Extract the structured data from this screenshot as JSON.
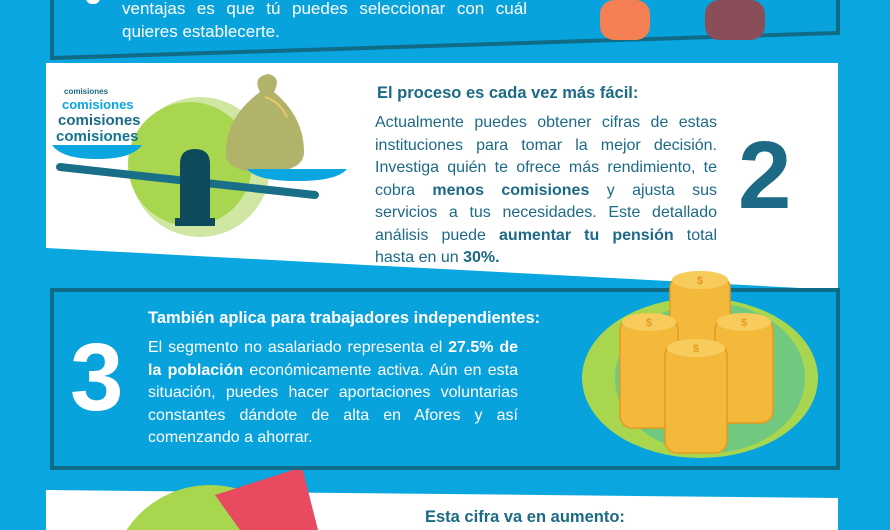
{
  "section1": {
    "body": "ventajas es que tú puedes seleccionar con cuál quieres establecerte."
  },
  "section2": {
    "number": "2",
    "heading": "El proceso es cada vez más fácil:",
    "body_1": "Actualmente puedes obtener cifras de estas instituciones para tomar la mejor decisión. Investiga quién te ofrece más rendimiento, te cobra ",
    "body_bold_1": "menos comisiones",
    "body_2": " y ajusta sus servicios a tus necesidades. Este detallado análisis puede ",
    "body_bold_2": "aumentar tu pensión",
    "body_3": " total hasta en un ",
    "body_bold_3": "30%.",
    "illustration_words": [
      "comisiones",
      "comisiones",
      "comisiones",
      "comisiones"
    ]
  },
  "section3": {
    "number": "3",
    "heading": "También aplica para trabajadores independientes:",
    "body_1": "El segmento no asalariado representa el ",
    "body_bold_1": "27.5% de la población",
    "body_2": " económicamente activa. Aún en esta situación, puedes hacer aportaciones voluntarias constantes dándote de alta en Afores y así comenzando a ahorrar.",
    "coin_symbol": "$"
  },
  "section4": {
    "heading": "Esta cifra va en aumento:"
  },
  "colors": {
    "background": "#0aa6e0",
    "panel_border": "#106b86",
    "text_teal": "#1c6a86",
    "green": "#a8d64f",
    "coin": "#f4b93a",
    "arrow": "#e84a5f"
  }
}
